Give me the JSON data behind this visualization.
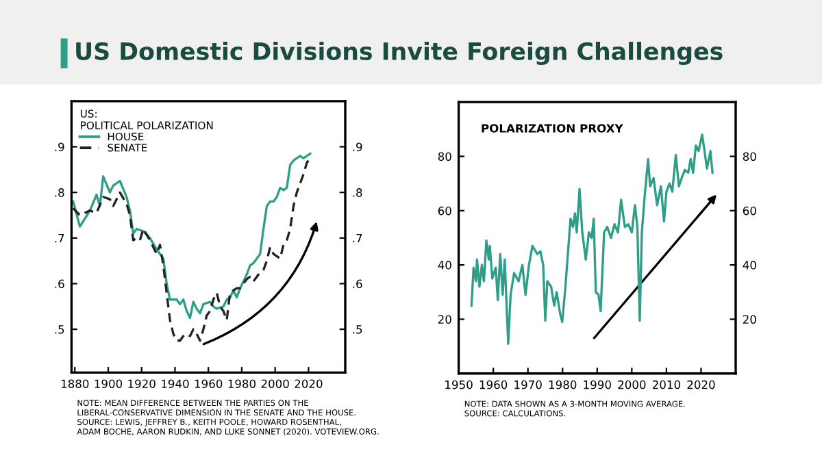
{
  "chart_data": [
    {
      "type": "line",
      "title": "US Domestic Divisions Invite Foreign Challenges",
      "legend_title": "US:\nPOLITICAL POLARIZATION",
      "legend": "top left",
      "grid": false,
      "xlim": [
        1878,
        2042
      ],
      "xticks": [
        1880,
        1900,
        1920,
        1940,
        1960,
        1980,
        2000,
        2020
      ],
      "ylim": [
        0.405,
        1.0
      ],
      "yticks": [
        {
          "value": 0.5,
          "label": ".5"
        },
        {
          "value": 0.6,
          "label": ".6"
        },
        {
          "value": 0.7,
          "label": ".7"
        },
        {
          "value": 0.8,
          "label": ".8"
        },
        {
          "value": 0.9,
          "label": ".9"
        }
      ],
      "y2lim": [
        0.405,
        1.0
      ],
      "y2ticks": [
        {
          "value": 0.5,
          "label": ".5"
        },
        {
          "value": 0.6,
          "label": ".6"
        },
        {
          "value": 0.7,
          "label": ".7"
        },
        {
          "value": 0.8,
          "label": ".8"
        },
        {
          "value": 0.9,
          "label": ".9"
        }
      ],
      "series": [
        {
          "name": "HOUSE",
          "color": "#2f9e88",
          "line_style": "solid",
          "x": [
            1879,
            1883,
            1889,
            1893,
            1895,
            1897,
            1901,
            1903,
            1907,
            1911,
            1913,
            1915,
            1917,
            1921,
            1925,
            1929,
            1933,
            1935,
            1937,
            1941,
            1943,
            1945,
            1947,
            1949,
            1951,
            1953,
            1955,
            1957,
            1961,
            1963,
            1965,
            1969,
            1971,
            1973,
            1975,
            1977,
            1979,
            1981,
            1983,
            1985,
            1987,
            1989,
            1991,
            1993,
            1995,
            1997,
            1999,
            2001,
            2003,
            2005,
            2007,
            2009,
            2011,
            2013,
            2015,
            2017,
            2019,
            2021
          ],
          "values": [
            0.78,
            0.725,
            0.76,
            0.795,
            0.77,
            0.835,
            0.8,
            0.815,
            0.825,
            0.79,
            0.76,
            0.71,
            0.72,
            0.715,
            0.7,
            0.675,
            0.655,
            0.6,
            0.565,
            0.565,
            0.555,
            0.565,
            0.54,
            0.525,
            0.56,
            0.545,
            0.535,
            0.555,
            0.56,
            0.55,
            0.545,
            0.55,
            0.565,
            0.57,
            0.585,
            0.57,
            0.59,
            0.605,
            0.62,
            0.64,
            0.645,
            0.655,
            0.665,
            0.72,
            0.77,
            0.78,
            0.78,
            0.79,
            0.81,
            0.805,
            0.81,
            0.86,
            0.87,
            0.875,
            0.88,
            0.875,
            0.88,
            0.885
          ]
        },
        {
          "name": "SENATE",
          "color": "#222222",
          "line_style": "dashed",
          "x": [
            1879,
            1883,
            1889,
            1893,
            1897,
            1901,
            1903,
            1907,
            1911,
            1913,
            1915,
            1917,
            1919,
            1921,
            1925,
            1929,
            1931,
            1933,
            1935,
            1937,
            1939,
            1941,
            1943,
            1945,
            1947,
            1949,
            1951,
            1953,
            1955,
            1957,
            1959,
            1961,
            1963,
            1965,
            1967,
            1969,
            1971,
            1973,
            1975,
            1977,
            1979,
            1983,
            1985,
            1987,
            1989,
            1991,
            1993,
            1995,
            1997,
            1999,
            2001,
            2003,
            2005,
            2007,
            2009,
            2011,
            2013,
            2015,
            2017,
            2019,
            2021
          ],
          "values": [
            0.765,
            0.75,
            0.76,
            0.755,
            0.79,
            0.785,
            0.77,
            0.8,
            0.775,
            0.75,
            0.695,
            0.7,
            0.695,
            0.72,
            0.695,
            0.665,
            0.685,
            0.64,
            0.58,
            0.52,
            0.49,
            0.475,
            0.475,
            0.485,
            0.49,
            0.485,
            0.5,
            0.49,
            0.475,
            0.5,
            0.53,
            0.54,
            0.565,
            0.58,
            0.55,
            0.54,
            0.52,
            0.58,
            0.585,
            0.59,
            0.59,
            0.61,
            0.615,
            0.605,
            0.615,
            0.625,
            0.63,
            0.65,
            0.68,
            0.665,
            0.66,
            0.655,
            0.685,
            0.695,
            0.72,
            0.77,
            0.8,
            0.82,
            0.84,
            0.865,
            0.875
          ]
        }
      ],
      "annotations": [
        "NOTE: MEAN DIFFERENCE BETWEEN THE PARTIES ON THE\nLIBERAL-CONSERVATIVE DIMENSION IN THE SENATE AND THE HOUSE.\nSOURCE: LEWIS, JEFFREY B., KEITH POOLE, HOWARD ROSENTHAL,\nADAM BOCHE, AARON RUDKIN, AND LUKE SONNET (2020). VOTEVIEW.ORG."
      ]
    },
    {
      "type": "line",
      "title": "POLARIZATION PROXY",
      "grid": false,
      "xlim": [
        1950,
        2030
      ],
      "xticks": [
        1950,
        1960,
        1970,
        1980,
        1990,
        2000,
        2010,
        2020
      ],
      "ylim": [
        0,
        100
      ],
      "yticks": [
        20,
        40,
        60,
        80
      ],
      "y2lim": [
        0,
        100
      ],
      "y2ticks": [
        20,
        40,
        60,
        80
      ],
      "series": [
        {
          "color": "#2f9e88",
          "line_style": "solid",
          "x": [
            1953.7,
            1954.3,
            1955,
            1955.3,
            1956,
            1956.7,
            1957.3,
            1958,
            1958.7,
            1959,
            1959.7,
            1960.7,
            1961.3,
            1962,
            1962.7,
            1963.3,
            1964.3,
            1965,
            1966,
            1967.3,
            1968.4,
            1969.3,
            1970.3,
            1971.3,
            1972.7,
            1973.6,
            1974.4,
            1975,
            1975.6,
            1976.7,
            1977.6,
            1978.3,
            1979.3,
            1979.9,
            1980.7,
            1981.3,
            1982.3,
            1983,
            1983.6,
            1984.1,
            1984.9,
            1985.7,
            1986.7,
            1987.6,
            1988.4,
            1989,
            1989.6,
            1990.4,
            1991,
            1992,
            1992.9,
            1994,
            1995,
            1996,
            1996.9,
            1998,
            1999,
            2000,
            2000.9,
            2001.6,
            2002.3,
            2002.9,
            2003.7,
            2004.7,
            2005.3,
            2006.3,
            2007.3,
            2008.4,
            2009.3,
            2010,
            2010.9,
            2011.7,
            2012.7,
            2013.6,
            2014.4,
            2015.3,
            2016.3,
            2017,
            2017.7,
            2018.5,
            2019.3,
            2020.3,
            2021,
            2021.7,
            2022.7,
            2023.3
          ],
          "values": [
            25,
            39,
            34,
            42,
            32,
            40,
            34,
            49,
            42,
            47,
            35,
            39,
            27,
            44,
            29,
            42,
            11,
            29,
            37,
            34,
            40,
            29,
            40,
            47,
            44,
            45,
            40,
            19.5,
            34,
            32,
            25,
            30,
            22,
            19,
            30,
            40,
            57,
            54,
            59,
            52,
            68,
            52,
            42,
            52,
            50,
            57,
            30,
            29,
            23,
            52,
            54,
            50,
            55,
            52,
            64,
            54,
            55,
            52,
            62,
            54,
            19.5,
            52,
            65,
            79,
            69,
            72,
            62,
            69,
            56,
            67,
            70,
            67,
            80.5,
            69,
            72,
            75,
            74,
            79,
            74,
            84,
            82,
            88,
            82,
            75.5,
            82,
            74
          ]
        }
      ],
      "annotations": [
        "NOTE: DATA SHOWN AS A 3-MONTH MOVING AVERAGE.\nSOURCE: CALCULATIONS."
      ]
    }
  ]
}
